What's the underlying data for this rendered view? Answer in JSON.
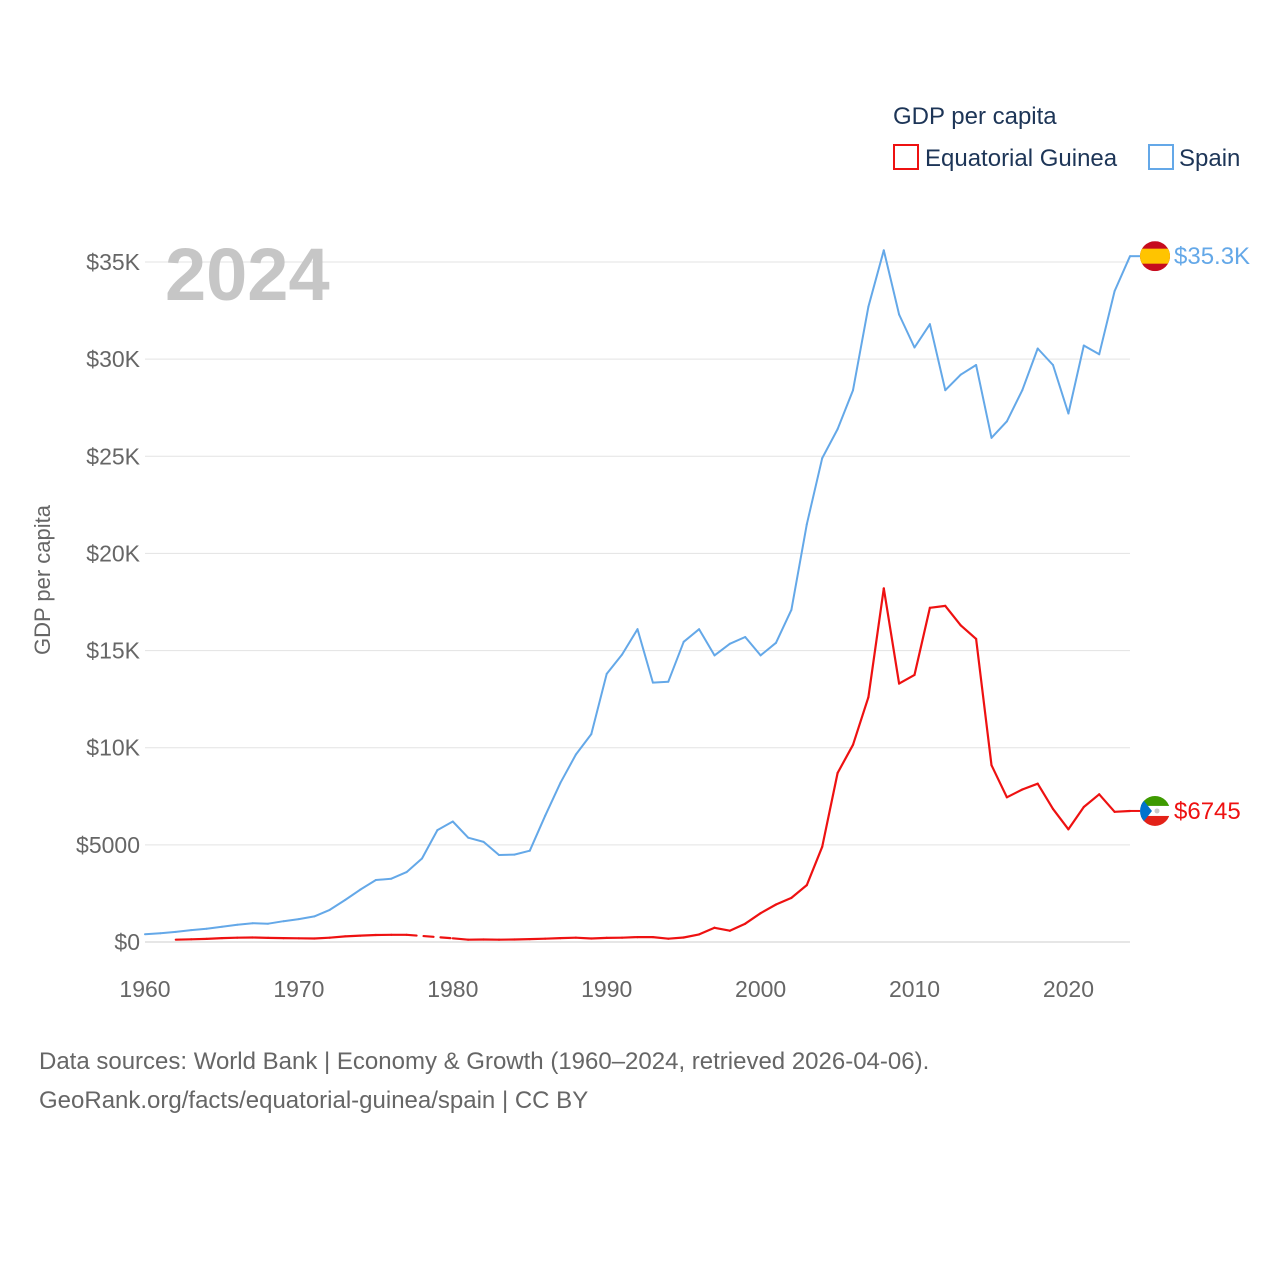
{
  "chart_data": {
    "type": "line",
    "year_label": "2024",
    "ylabel": "GDP per capita",
    "ylim": [
      0,
      37000
    ],
    "xlim": [
      1960,
      2024
    ],
    "y_ticks": [
      {
        "value": 0,
        "label": "$0"
      },
      {
        "value": 5000,
        "label": "$5000"
      },
      {
        "value": 10000,
        "label": "$10K"
      },
      {
        "value": 15000,
        "label": "$15K"
      },
      {
        "value": 20000,
        "label": "$20K"
      },
      {
        "value": 25000,
        "label": "$25K"
      },
      {
        "value": 30000,
        "label": "$30K"
      },
      {
        "value": 35000,
        "label": "$35K"
      }
    ],
    "x_ticks": [
      {
        "value": 1960,
        "label": "1960"
      },
      {
        "value": 1970,
        "label": "1970"
      },
      {
        "value": 1980,
        "label": "1980"
      },
      {
        "value": 1990,
        "label": "1990"
      },
      {
        "value": 2000,
        "label": "2000"
      },
      {
        "value": 2010,
        "label": "2010"
      },
      {
        "value": 2020,
        "label": "2020"
      }
    ],
    "legend": {
      "title": "GDP per capita",
      "placement": "top-right",
      "items": [
        {
          "name": "Equatorial Guinea",
          "color": "#ee1111"
        },
        {
          "name": "Spain",
          "color": "#64a8e8"
        }
      ]
    },
    "series": [
      {
        "name": "Spain",
        "color": "#64a8e8",
        "end_label": "$35.3K",
        "flag": "spain-flag-icon",
        "points": [
          [
            1960,
            400
          ],
          [
            1961,
            450
          ],
          [
            1962,
            520
          ],
          [
            1963,
            610
          ],
          [
            1964,
            680
          ],
          [
            1965,
            780
          ],
          [
            1966,
            890
          ],
          [
            1967,
            970
          ],
          [
            1968,
            940
          ],
          [
            1969,
            1070
          ],
          [
            1970,
            1180
          ],
          [
            1971,
            1320
          ],
          [
            1972,
            1650
          ],
          [
            1973,
            2160
          ],
          [
            1974,
            2700
          ],
          [
            1975,
            3190
          ],
          [
            1976,
            3260
          ],
          [
            1977,
            3600
          ],
          [
            1978,
            4300
          ],
          [
            1979,
            5760
          ],
          [
            1980,
            6200
          ],
          [
            1981,
            5370
          ],
          [
            1982,
            5150
          ],
          [
            1983,
            4480
          ],
          [
            1984,
            4500
          ],
          [
            1985,
            4700
          ],
          [
            1986,
            6500
          ],
          [
            1987,
            8200
          ],
          [
            1988,
            9650
          ],
          [
            1989,
            10700
          ],
          [
            1990,
            13800
          ],
          [
            1991,
            14800
          ],
          [
            1992,
            16100
          ],
          [
            1993,
            13350
          ],
          [
            1994,
            13400
          ],
          [
            1995,
            15450
          ],
          [
            1996,
            16100
          ],
          [
            1997,
            14750
          ],
          [
            1998,
            15350
          ],
          [
            1999,
            15700
          ],
          [
            2000,
            14750
          ],
          [
            2001,
            15400
          ],
          [
            2002,
            17100
          ],
          [
            2003,
            21500
          ],
          [
            2004,
            24900
          ],
          [
            2005,
            26400
          ],
          [
            2006,
            28400
          ],
          [
            2007,
            32700
          ],
          [
            2008,
            35600
          ],
          [
            2009,
            32300
          ],
          [
            2010,
            30600
          ],
          [
            2011,
            31800
          ],
          [
            2012,
            28400
          ],
          [
            2013,
            29200
          ],
          [
            2014,
            29700
          ],
          [
            2015,
            25950
          ],
          [
            2016,
            26800
          ],
          [
            2017,
            28400
          ],
          [
            2018,
            30550
          ],
          [
            2019,
            29700
          ],
          [
            2020,
            27200
          ],
          [
            2021,
            30700
          ],
          [
            2022,
            30250
          ],
          [
            2023,
            33500
          ],
          [
            2024,
            35300
          ]
        ]
      },
      {
        "name": "Equatorial Guinea",
        "color": "#ee1111",
        "end_label": "$6745",
        "flag": "equatorial-guinea-flag-icon",
        "gap": [
          1977,
          1980
        ],
        "points": [
          [
            1962,
            120
          ],
          [
            1963,
            140
          ],
          [
            1964,
            160
          ],
          [
            1965,
            200
          ],
          [
            1966,
            220
          ],
          [
            1967,
            230
          ],
          [
            1968,
            210
          ],
          [
            1969,
            200
          ],
          [
            1970,
            190
          ],
          [
            1971,
            180
          ],
          [
            1972,
            220
          ],
          [
            1973,
            290
          ],
          [
            1974,
            330
          ],
          [
            1975,
            360
          ],
          [
            1976,
            370
          ],
          [
            1977,
            370
          ],
          [
            1980,
            190
          ],
          [
            1981,
            120
          ],
          [
            1982,
            130
          ],
          [
            1983,
            120
          ],
          [
            1984,
            130
          ],
          [
            1985,
            150
          ],
          [
            1986,
            170
          ],
          [
            1987,
            200
          ],
          [
            1988,
            220
          ],
          [
            1989,
            180
          ],
          [
            1990,
            210
          ],
          [
            1991,
            220
          ],
          [
            1992,
            250
          ],
          [
            1993,
            250
          ],
          [
            1994,
            170
          ],
          [
            1995,
            230
          ],
          [
            1996,
            390
          ],
          [
            1997,
            730
          ],
          [
            1998,
            580
          ],
          [
            1999,
            940
          ],
          [
            2000,
            1480
          ],
          [
            2001,
            1930
          ],
          [
            2002,
            2270
          ],
          [
            2003,
            2930
          ],
          [
            2004,
            4900
          ],
          [
            2005,
            8700
          ],
          [
            2006,
            10150
          ],
          [
            2007,
            12600
          ],
          [
            2008,
            18200
          ],
          [
            2009,
            13300
          ],
          [
            2010,
            13750
          ],
          [
            2011,
            17200
          ],
          [
            2012,
            17300
          ],
          [
            2013,
            16300
          ],
          [
            2014,
            15600
          ],
          [
            2015,
            9100
          ],
          [
            2016,
            7450
          ],
          [
            2017,
            7850
          ],
          [
            2018,
            8150
          ],
          [
            2019,
            6850
          ],
          [
            2020,
            5800
          ],
          [
            2021,
            6950
          ],
          [
            2022,
            7600
          ],
          [
            2023,
            6700
          ],
          [
            2024,
            6745
          ]
        ]
      }
    ]
  },
  "source": {
    "line1": "Data sources: World Bank | Economy & Growth (1960–2024, retrieved 2026-04-06).",
    "line2": "GeoRank.org/facts/equatorial-guinea/spain | CC BY"
  }
}
